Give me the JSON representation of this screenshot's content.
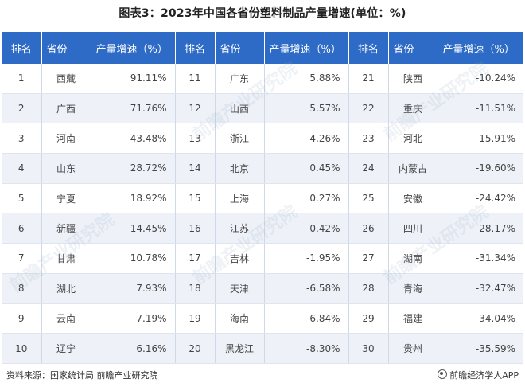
{
  "title": "图表3：2023年中国各省份塑料制品产量增速(单位：%)",
  "headers": {
    "rank": "排名",
    "province": "省份",
    "growth": "产量增速（%）"
  },
  "rows": [
    [
      {
        "r": "1",
        "p": "西藏",
        "v": "91.11%"
      },
      {
        "r": "11",
        "p": "广东",
        "v": "5.88%"
      },
      {
        "r": "21",
        "p": "陕西",
        "v": "-10.24%"
      }
    ],
    [
      {
        "r": "2",
        "p": "广西",
        "v": "71.76%"
      },
      {
        "r": "12",
        "p": "山西",
        "v": "5.57%"
      },
      {
        "r": "22",
        "p": "重庆",
        "v": "-11.51%"
      }
    ],
    [
      {
        "r": "3",
        "p": "河南",
        "v": "43.48%"
      },
      {
        "r": "13",
        "p": "浙江",
        "v": "4.26%"
      },
      {
        "r": "23",
        "p": "河北",
        "v": "-15.91%"
      }
    ],
    [
      {
        "r": "4",
        "p": "山东",
        "v": "28.72%"
      },
      {
        "r": "14",
        "p": "北京",
        "v": "0.45%"
      },
      {
        "r": "24",
        "p": "内蒙古",
        "v": "-19.60%"
      }
    ],
    [
      {
        "r": "5",
        "p": "宁夏",
        "v": "18.92%"
      },
      {
        "r": "15",
        "p": "上海",
        "v": "0.27%"
      },
      {
        "r": "25",
        "p": "安徽",
        "v": "-24.42%"
      }
    ],
    [
      {
        "r": "6",
        "p": "新疆",
        "v": "14.45%"
      },
      {
        "r": "16",
        "p": "江苏",
        "v": "-0.42%"
      },
      {
        "r": "26",
        "p": "四川",
        "v": "-28.17%"
      }
    ],
    [
      {
        "r": "7",
        "p": "甘肃",
        "v": "10.78%"
      },
      {
        "r": "17",
        "p": "吉林",
        "v": "-1.95%"
      },
      {
        "r": "27",
        "p": "湖南",
        "v": "-31.34%"
      }
    ],
    [
      {
        "r": "8",
        "p": "湖北",
        "v": "7.93%"
      },
      {
        "r": "18",
        "p": "天津",
        "v": "-6.58%"
      },
      {
        "r": "28",
        "p": "青海",
        "v": "-32.47%"
      }
    ],
    [
      {
        "r": "9",
        "p": "云南",
        "v": "7.19%"
      },
      {
        "r": "19",
        "p": "海南",
        "v": "-6.84%"
      },
      {
        "r": "29",
        "p": "福建",
        "v": "-34.04%"
      }
    ],
    [
      {
        "r": "10",
        "p": "辽宁",
        "v": "6.16%"
      },
      {
        "r": "20",
        "p": "黑龙江",
        "v": "-8.30%"
      },
      {
        "r": "30",
        "p": "贵州",
        "v": "-35.59%"
      }
    ]
  ],
  "watermark": "前瞻产业研究院",
  "footer": {
    "source": "资料来源：国家统计局 前瞻产业研究院",
    "brand": "前瞻经济学人APP"
  },
  "colors": {
    "header_bg": "#2e6bc6",
    "stripe": "#eef2f8"
  }
}
